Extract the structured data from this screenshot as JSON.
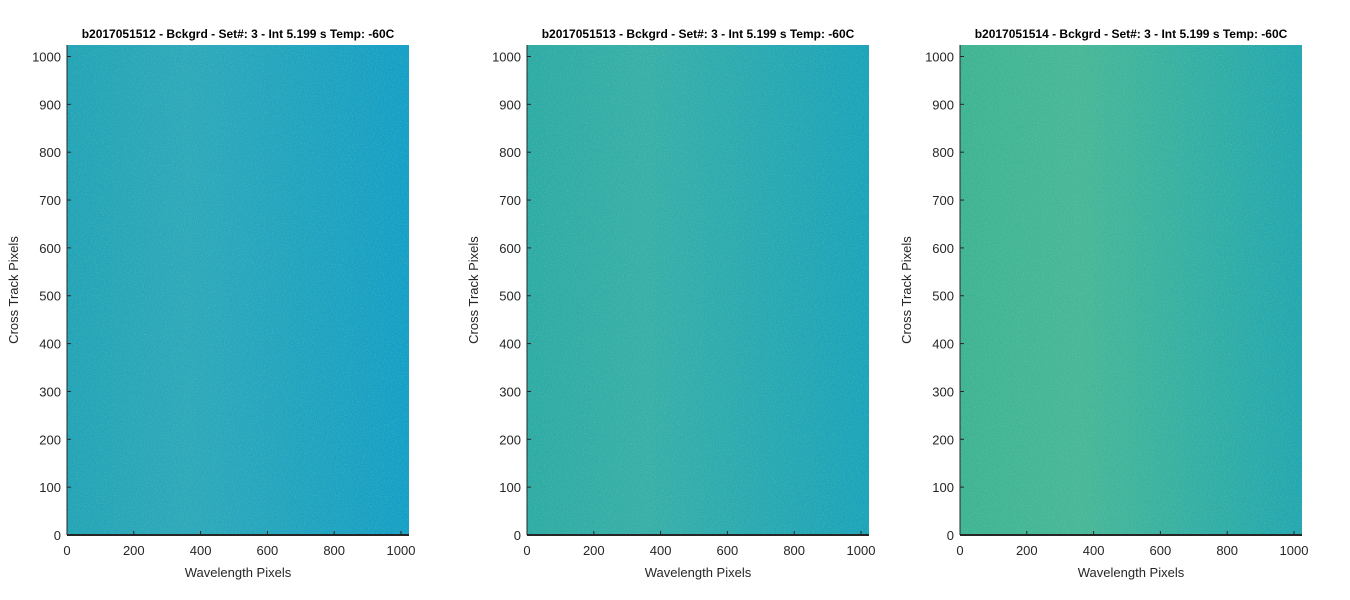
{
  "figure": {
    "background": "#ffffff"
  },
  "chart_data": [
    {
      "type": "heatmap",
      "title": "b2017051512 - Bckgrd - Set#: 3 - Int 5.199 s Temp: -60C",
      "xlabel": "Wavelength Pixels",
      "ylabel": "Cross Track Pixels",
      "xlim": [
        0,
        1024
      ],
      "ylim": [
        0,
        1024
      ],
      "xticks": [
        0,
        200,
        400,
        600,
        800,
        1000
      ],
      "yticks": [
        0,
        100,
        200,
        300,
        400,
        500,
        600,
        700,
        800,
        900,
        1000
      ],
      "colormap": "parula",
      "color_left": "#1fa3b9",
      "color_right": "#119ec8",
      "grid": false
    },
    {
      "type": "heatmap",
      "title": "b2017051513 - Bckgrd - Set#: 3 - Int 5.199 s Temp: -60C",
      "xlabel": "Wavelength Pixels",
      "ylabel": "Cross Track Pixels",
      "xlim": [
        0,
        1024
      ],
      "ylim": [
        0,
        1024
      ],
      "xticks": [
        0,
        200,
        400,
        600,
        800,
        1000
      ],
      "yticks": [
        0,
        100,
        200,
        300,
        400,
        500,
        600,
        700,
        800,
        900,
        1000
      ],
      "colormap": "parula",
      "color_left": "#2aaaa6",
      "color_right": "#17a2bd",
      "grid": false
    },
    {
      "type": "heatmap",
      "title": "b2017051514 - Bckgrd - Set#: 3 - Int 5.199 s Temp: -60C",
      "xlabel": "Wavelength Pixels",
      "ylabel": "Cross Track Pixels",
      "xlim": [
        0,
        1024
      ],
      "ylim": [
        0,
        1024
      ],
      "xticks": [
        0,
        200,
        400,
        600,
        800,
        1000
      ],
      "yticks": [
        0,
        100,
        200,
        300,
        400,
        500,
        600,
        700,
        800,
        900,
        1000
      ],
      "colormap": "parula",
      "color_left": "#3bb394",
      "color_right": "#1fa6b2",
      "grid": false
    }
  ]
}
